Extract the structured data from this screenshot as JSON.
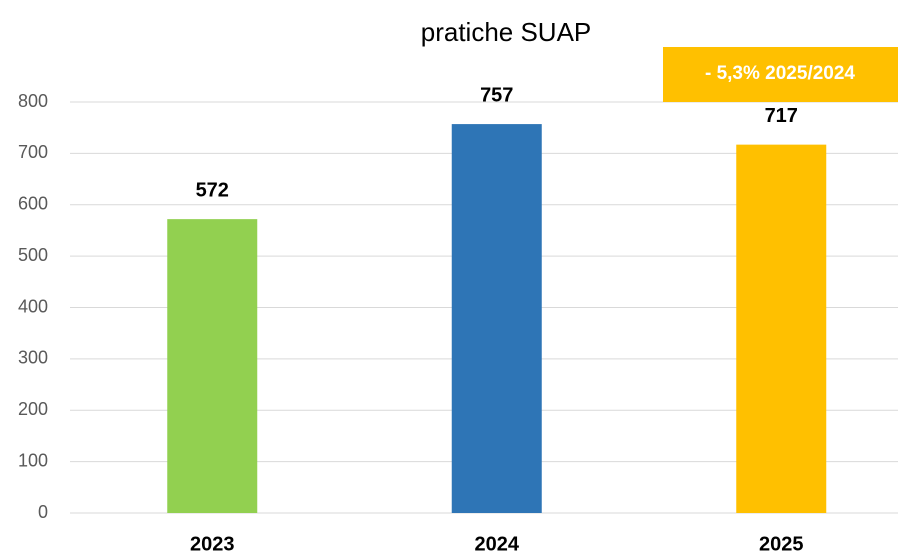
{
  "chart_data": {
    "type": "bar",
    "title": "pratiche SUAP",
    "categories": [
      "2023",
      "2024",
      "2025"
    ],
    "values": [
      572,
      757,
      717
    ],
    "colors": [
      "#92d050",
      "#2e75b6",
      "#ffc000"
    ],
    "ylim": [
      0,
      800
    ],
    "yticks": [
      0,
      100,
      200,
      300,
      400,
      500,
      600,
      700,
      800
    ],
    "grid": true,
    "annotation": {
      "text": "- 5,3% 2025/2024",
      "color": "#ffc000"
    }
  }
}
